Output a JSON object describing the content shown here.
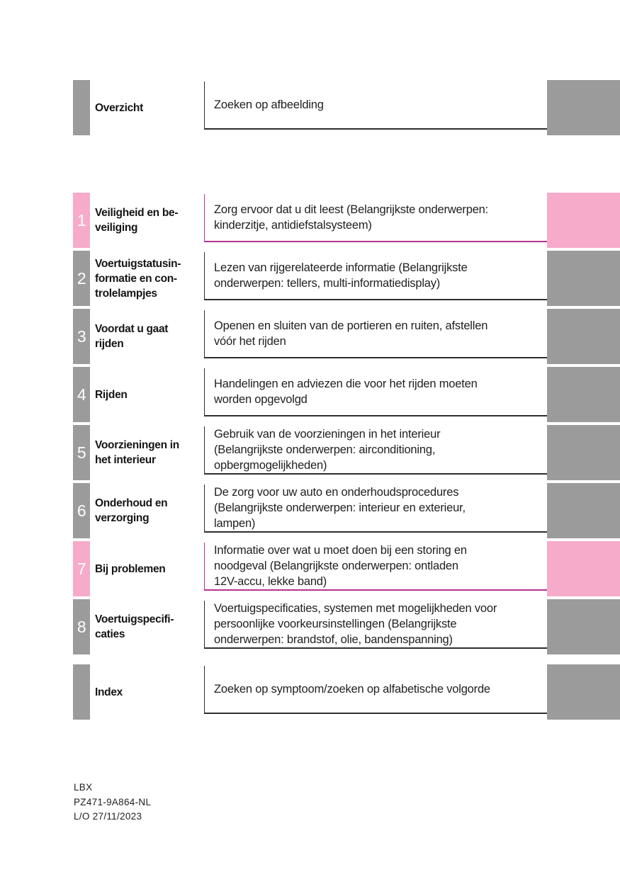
{
  "colors": {
    "accent_pink": "#f6abca",
    "block_gray": "#9b9b9b",
    "rule_pink": "#b5338f",
    "rule_dark": "#2e2e2e"
  },
  "overview": {
    "label": "Overzicht",
    "description": "Zoeken op afbeelding"
  },
  "sections": [
    {
      "number": "1",
      "title": "Veiligheid en be-\nveiliging",
      "description": "Zorg ervoor dat u dit leest (Belangrijkste onderwerpen:\nkinderzitje, antidiefstalsysteem)",
      "accent": "pink"
    },
    {
      "number": "2",
      "title": "Voertuigstatusin-\nformatie en con-\ntrolelampjes",
      "description": "Lezen van rijgerelateerde informatie (Belangrijkste\nonderwerpen: tellers, multi-informatiedisplay)",
      "accent": "gray"
    },
    {
      "number": "3",
      "title": "Voordat u gaat\nrijden",
      "description": "Openen en sluiten van de portieren en ruiten, afstellen\nvóór het rijden",
      "accent": "gray"
    },
    {
      "number": "4",
      "title": "Rijden",
      "description": "Handelingen en adviezen die voor het rijden moeten\nworden opgevolgd",
      "accent": "gray"
    },
    {
      "number": "5",
      "title": "Voorzieningen in\nhet interieur",
      "description": "Gebruik van de voorzieningen in het interieur\n(Belangrijkste onderwerpen: airconditioning,\nopbergmogelijkheden)",
      "accent": "gray"
    },
    {
      "number": "6",
      "title": "Onderhoud en\nverzorging",
      "description": "De zorg voor uw auto en onderhoudsprocedures\n(Belangrijkste onderwerpen: interieur en exterieur,\nlampen)",
      "accent": "gray"
    },
    {
      "number": "7",
      "title": "Bij problemen",
      "description": "Informatie over wat u moet doen bij een storing en\nnoodgeval (Belangrijkste onderwerpen: ontladen\n12V-accu, lekke band)",
      "accent": "pink"
    },
    {
      "number": "8",
      "title": "Voertuigspecifi-\ncaties",
      "description": "Voertuigspecificaties, systemen met mogelijkheden voor\npersoonlijke voorkeursinstellingen (Belangrijkste\nonderwerpen: brandstof, olie, bandenspanning)",
      "accent": "gray"
    }
  ],
  "index": {
    "label": "Index",
    "description": "Zoeken op symptoom/zoeken op alfabetische volgorde"
  },
  "footer": {
    "model_code": "LBX",
    "publication_number": "PZ471-9A864-NL",
    "layout_date": "L/O 27/11/2023"
  }
}
